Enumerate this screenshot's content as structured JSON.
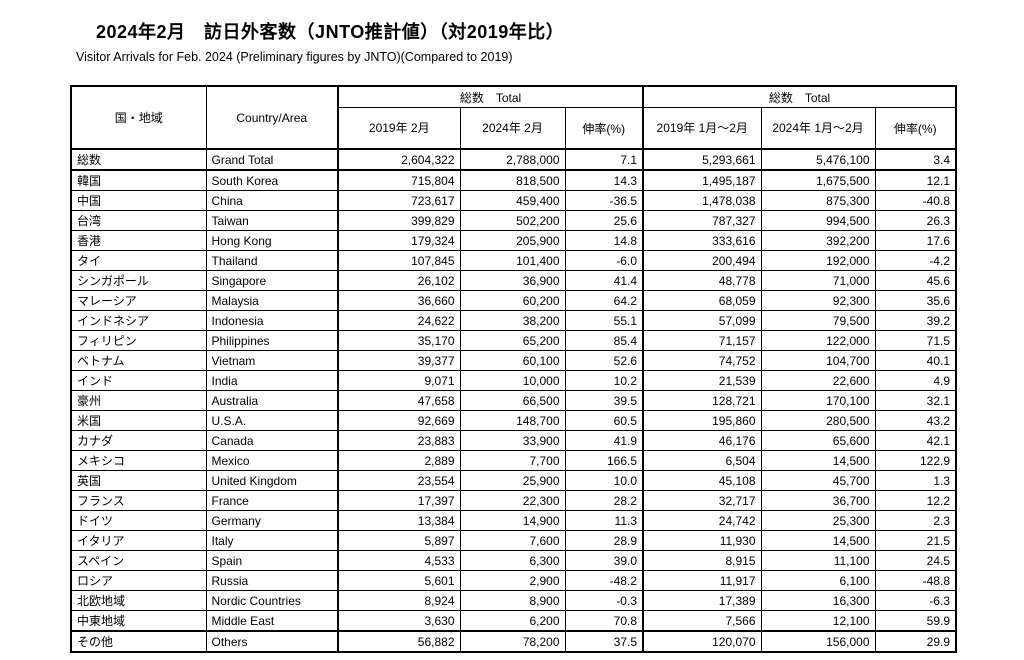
{
  "title": "2024年2月　訪日外客数（JNTO推計値）（対2019年比）",
  "subtitle": "Visitor Arrivals for Feb. 2024 (Preliminary figures by JNTO)(Compared to 2019)",
  "table": {
    "header": {
      "country_area_jp": "国・地域",
      "country_area_en": "Country/Area",
      "total_label_left": "総数　Total",
      "total_label_right": "総数　Total",
      "col_2019_feb": "2019年\n2月",
      "col_2024_feb": "2024年\n2月",
      "growth_label_left": "伸率(%)",
      "col_2019_janfeb": "2019年\n1月～2月",
      "col_2024_janfeb": "2024年\n1月～2月",
      "growth_label_right": "伸率(%)"
    },
    "rows": [
      [
        "総数",
        "Grand Total",
        "2,604,322",
        "2,788,000",
        "7.1",
        "5,293,661",
        "5,476,100",
        "3.4"
      ],
      [
        "韓国",
        "South Korea",
        "715,804",
        "818,500",
        "14.3",
        "1,495,187",
        "1,675,500",
        "12.1"
      ],
      [
        "中国",
        "China",
        "723,617",
        "459,400",
        "-36.5",
        "1,478,038",
        "875,300",
        "-40.8"
      ],
      [
        "台湾",
        "Taiwan",
        "399,829",
        "502,200",
        "25.6",
        "787,327",
        "994,500",
        "26.3"
      ],
      [
        "香港",
        "Hong Kong",
        "179,324",
        "205,900",
        "14.8",
        "333,616",
        "392,200",
        "17.6"
      ],
      [
        "タイ",
        "Thailand",
        "107,845",
        "101,400",
        "-6.0",
        "200,494",
        "192,000",
        "-4.2"
      ],
      [
        "シンガポール",
        "Singapore",
        "26,102",
        "36,900",
        "41.4",
        "48,778",
        "71,000",
        "45.6"
      ],
      [
        "マレーシア",
        "Malaysia",
        "36,660",
        "60,200",
        "64.2",
        "68,059",
        "92,300",
        "35.6"
      ],
      [
        "インドネシア",
        "Indonesia",
        "24,622",
        "38,200",
        "55.1",
        "57,099",
        "79,500",
        "39.2"
      ],
      [
        "フィリピン",
        "Philippines",
        "35,170",
        "65,200",
        "85.4",
        "71,157",
        "122,000",
        "71.5"
      ],
      [
        "ベトナム",
        "Vietnam",
        "39,377",
        "60,100",
        "52.6",
        "74,752",
        "104,700",
        "40.1"
      ],
      [
        "インド",
        "India",
        "9,071",
        "10,000",
        "10.2",
        "21,539",
        "22,600",
        "4.9"
      ],
      [
        "豪州",
        "Australia",
        "47,658",
        "66,500",
        "39.5",
        "128,721",
        "170,100",
        "32.1"
      ],
      [
        "米国",
        "U.S.A.",
        "92,669",
        "148,700",
        "60.5",
        "195,860",
        "280,500",
        "43.2"
      ],
      [
        "カナダ",
        "Canada",
        "23,883",
        "33,900",
        "41.9",
        "46,176",
        "65,600",
        "42.1"
      ],
      [
        "メキシコ",
        "Mexico",
        "2,889",
        "7,700",
        "166.5",
        "6,504",
        "14,500",
        "122.9"
      ],
      [
        "英国",
        "United Kingdom",
        "23,554",
        "25,900",
        "10.0",
        "45,108",
        "45,700",
        "1.3"
      ],
      [
        "フランス",
        "France",
        "17,397",
        "22,300",
        "28.2",
        "32,717",
        "36,700",
        "12.2"
      ],
      [
        "ドイツ",
        "Germany",
        "13,384",
        "14,900",
        "11.3",
        "24,742",
        "25,300",
        "2.3"
      ],
      [
        "イタリア",
        "Italy",
        "5,897",
        "7,600",
        "28.9",
        "11,930",
        "14,500",
        "21.5"
      ],
      [
        "スペイン",
        "Spain",
        "4,533",
        "6,300",
        "39.0",
        "8,915",
        "11,100",
        "24.5"
      ],
      [
        "ロシア",
        "Russia",
        "5,601",
        "2,900",
        "-48.2",
        "11,917",
        "6,100",
        "-48.8"
      ],
      [
        "北欧地域",
        "Nordic Countries",
        "8,924",
        "8,900",
        "-0.3",
        "17,389",
        "16,300",
        "-6.3"
      ],
      [
        "中東地域",
        "Middle East",
        "3,630",
        "6,200",
        "70.8",
        "7,566",
        "12,100",
        "59.9"
      ],
      [
        "その他",
        "Others",
        "56,882",
        "78,200",
        "37.5",
        "120,070",
        "156,000",
        "29.9"
      ]
    ]
  }
}
